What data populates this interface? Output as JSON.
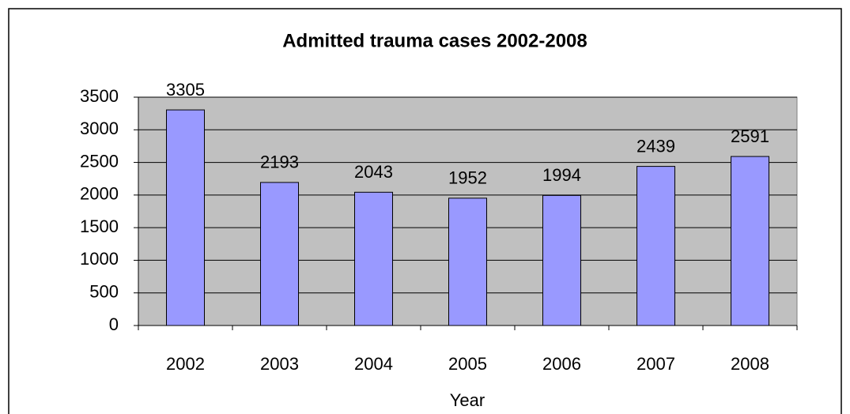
{
  "chart_data": {
    "type": "bar",
    "title": "Admitted trauma cases 2002-2008",
    "categories": [
      "2002",
      "2003",
      "2004",
      "2005",
      "2006",
      "2007",
      "2008"
    ],
    "values": [
      3305,
      2193,
      2043,
      1952,
      1994,
      2439,
      2591
    ],
    "color": "#9999ff",
    "xlabel": "Year",
    "ylim": [
      0,
      3500
    ],
    "yticks": [
      0,
      500,
      1000,
      1500,
      2000,
      2500,
      3000,
      3500
    ],
    "grid": true
  }
}
